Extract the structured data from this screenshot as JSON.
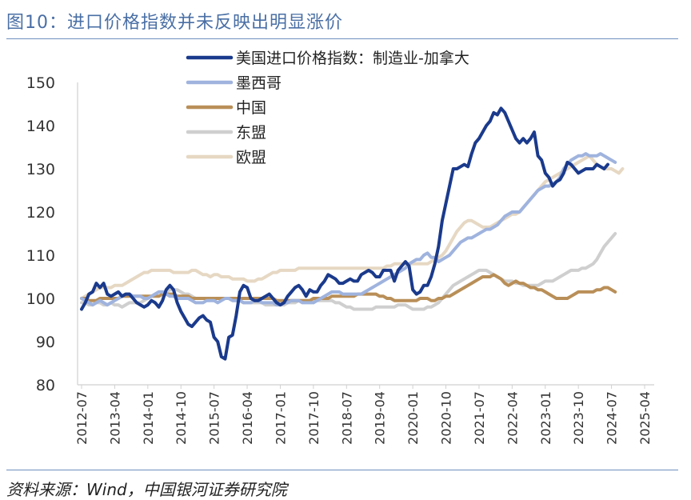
{
  "figure_title": "图10：进口价格指数并未反映出明显涨价",
  "source": "资料来源：Wind，中国银河证券研究院",
  "chart_data": {
    "type": "line",
    "title": "",
    "xlabel": "",
    "ylabel": "",
    "ylim": [
      80,
      150
    ],
    "yticks": [
      80,
      90,
      100,
      110,
      120,
      130,
      140,
      150
    ],
    "grid": false,
    "legend_position": "top",
    "x_ticks": [
      "2012-07",
      "2013-04",
      "2014-01",
      "2014-10",
      "2015-07",
      "2016-04",
      "2017-01",
      "2017-10",
      "2018-07",
      "2019-04",
      "2020-01",
      "2020-10",
      "2021-07",
      "2022-04",
      "2023-01",
      "2023-10",
      "2024-07",
      "2025-04"
    ],
    "x_start": "2012-07",
    "frequency": "monthly",
    "series": [
      {
        "name": "美国进口价格指数：制造业-加拿大",
        "color": "#1a3a8c",
        "width": 4,
        "values": [
          97.5,
          99.0,
          101.0,
          101.5,
          103.5,
          102.5,
          103.5,
          101.0,
          100.5,
          101.0,
          101.5,
          100.5,
          101.0,
          101.0,
          100.0,
          99.0,
          98.5,
          98.0,
          98.5,
          99.5,
          99.0,
          98.0,
          99.5,
          102.0,
          103.0,
          102.0,
          99.0,
          97.0,
          95.5,
          94.0,
          93.5,
          94.5,
          95.5,
          96.0,
          95.0,
          94.5,
          91.0,
          90.0,
          86.5,
          86.0,
          91.0,
          91.5,
          96.0,
          101.5,
          103.0,
          102.5,
          100.0,
          99.5,
          99.5,
          100.0,
          100.5,
          101.0,
          100.0,
          99.0,
          98.5,
          99.0,
          100.5,
          101.5,
          102.5,
          103.0,
          102.0,
          100.5,
          102.0,
          101.5,
          101.5,
          103.0,
          104.0,
          105.5,
          105.0,
          104.5,
          103.5,
          103.5,
          104.0,
          104.5,
          104.0,
          104.0,
          105.5,
          106.0,
          106.5,
          106.0,
          105.0,
          105.0,
          106.5,
          106.5,
          106.5,
          104.0,
          106.5,
          107.5,
          108.5,
          107.5,
          102.0,
          101.0,
          101.5,
          103.0,
          103.0,
          105.0,
          108.0,
          112.0,
          118.0,
          122.0,
          126.0,
          130.0,
          130.0,
          130.5,
          131.0,
          130.5,
          133.5,
          136.0,
          137.0,
          138.5,
          140.0,
          141.0,
          143.0,
          142.5,
          144.0,
          143.0,
          141.0,
          139.0,
          137.0,
          136.0,
          137.0,
          136.0,
          137.0,
          138.5,
          133.0,
          132.0,
          129.0,
          128.0,
          126.0,
          127.0,
          127.5,
          129.0,
          131.5,
          131.0,
          130.0,
          129.0,
          129.5,
          130.0,
          130.0,
          130.0,
          131.0,
          130.5,
          130.0,
          131.0
        ]
      },
      {
        "name": "墨西哥",
        "color": "#9fb3de",
        "width": 4,
        "values": [
          100.0,
          99.5,
          99.0,
          98.5,
          99.0,
          99.5,
          99.0,
          98.5,
          99.0,
          99.5,
          100.0,
          100.5,
          101.0,
          101.0,
          100.5,
          100.5,
          100.5,
          100.0,
          100.0,
          100.5,
          101.0,
          101.5,
          101.5,
          101.0,
          100.5,
          100.5,
          100.0,
          100.0,
          100.0,
          100.0,
          99.5,
          99.0,
          99.0,
          99.0,
          99.5,
          99.5,
          99.5,
          99.0,
          99.5,
          100.0,
          100.0,
          99.5,
          99.5,
          99.5,
          99.0,
          99.0,
          99.0,
          99.5,
          99.5,
          99.0,
          99.0,
          99.0,
          99.0,
          98.5,
          98.5,
          99.0,
          99.0,
          99.5,
          99.5,
          99.5,
          99.0,
          99.0,
          99.0,
          99.0,
          99.5,
          100.0,
          100.5,
          101.0,
          101.5,
          101.5,
          101.5,
          101.0,
          101.0,
          101.0,
          101.0,
          101.0,
          101.0,
          101.5,
          102.0,
          102.5,
          103.0,
          103.5,
          104.0,
          104.5,
          105.0,
          105.5,
          106.0,
          106.5,
          107.0,
          108.0,
          108.5,
          109.0,
          109.0,
          110.0,
          110.5,
          109.5,
          109.5,
          108.5,
          109.0,
          109.5,
          110.0,
          111.0,
          112.0,
          113.0,
          113.5,
          114.0,
          114.0,
          114.5,
          115.0,
          115.5,
          116.0,
          116.0,
          116.5,
          117.0,
          118.0,
          119.0,
          119.5,
          120.0,
          120.0,
          120.0,
          121.0,
          122.0,
          123.0,
          124.0,
          125.0,
          125.5,
          126.0,
          126.0,
          126.5,
          127.0,
          128.0,
          130.0,
          131.0,
          132.0,
          132.5,
          133.0,
          133.0,
          133.5,
          133.0,
          133.0,
          133.0,
          133.5,
          133.0,
          132.5,
          132.0,
          131.5
        ]
      },
      {
        "name": "中国",
        "color": "#b98f58",
        "width": 4,
        "values": [
          100.0,
          100.0,
          99.5,
          99.5,
          99.5,
          100.0,
          100.0,
          100.0,
          100.0,
          100.0,
          100.0,
          100.5,
          100.5,
          100.5,
          100.5,
          100.5,
          100.5,
          100.5,
          100.5,
          100.5,
          100.5,
          100.5,
          101.0,
          101.0,
          101.0,
          101.0,
          100.5,
          100.5,
          100.5,
          100.5,
          100.0,
          100.0,
          100.0,
          100.0,
          100.0,
          100.0,
          100.0,
          100.0,
          100.0,
          100.0,
          100.0,
          100.0,
          100.0,
          100.0,
          100.0,
          100.0,
          100.0,
          100.0,
          100.0,
          100.0,
          100.0,
          100.0,
          100.0,
          99.5,
          99.5,
          99.5,
          99.5,
          99.5,
          99.5,
          99.5,
          99.5,
          99.5,
          99.5,
          100.0,
          100.0,
          100.0,
          100.0,
          100.0,
          100.5,
          100.5,
          100.5,
          100.5,
          100.5,
          100.5,
          100.5,
          101.0,
          101.0,
          101.0,
          101.0,
          101.0,
          101.0,
          100.5,
          100.5,
          100.0,
          100.0,
          99.5,
          99.5,
          99.5,
          99.5,
          99.5,
          99.5,
          99.5,
          100.0,
          100.0,
          100.0,
          99.5,
          99.5,
          100.0,
          100.0,
          100.5,
          100.5,
          101.0,
          101.5,
          102.0,
          102.5,
          103.0,
          103.5,
          104.0,
          104.5,
          105.0,
          105.0,
          105.0,
          105.5,
          105.0,
          104.5,
          103.5,
          103.0,
          103.5,
          104.0,
          103.5,
          103.5,
          103.0,
          102.5,
          102.5,
          102.0,
          102.0,
          101.5,
          101.0,
          100.5,
          100.0,
          100.0,
          100.0,
          100.0,
          100.5,
          101.0,
          101.5,
          101.5,
          101.5,
          101.5,
          101.5,
          102.0,
          102.0,
          102.5,
          102.5,
          102.0,
          101.5
        ]
      },
      {
        "name": "东盟",
        "color": "#cfcfcf",
        "width": 4,
        "values": [
          99.0,
          99.0,
          98.5,
          98.5,
          99.0,
          99.0,
          98.5,
          98.5,
          99.0,
          98.5,
          98.5,
          98.0,
          98.5,
          99.0,
          99.0,
          99.0,
          99.0,
          99.5,
          100.0,
          100.5,
          101.0,
          101.5,
          101.5,
          101.5,
          102.0,
          102.0,
          102.0,
          101.5,
          101.0,
          101.0,
          100.5,
          100.0,
          100.0,
          100.0,
          100.0,
          100.0,
          100.0,
          100.0,
          100.0,
          100.0,
          100.0,
          99.5,
          99.5,
          99.5,
          99.0,
          99.0,
          99.0,
          99.0,
          99.0,
          99.0,
          98.5,
          98.5,
          98.5,
          98.5,
          98.5,
          98.5,
          99.0,
          99.0,
          99.0,
          99.5,
          99.5,
          99.5,
          99.5,
          99.5,
          99.5,
          99.5,
          99.5,
          99.5,
          99.5,
          99.0,
          99.0,
          98.5,
          98.0,
          98.0,
          97.5,
          97.5,
          97.5,
          97.5,
          97.5,
          97.5,
          98.0,
          98.0,
          98.0,
          98.0,
          98.0,
          98.0,
          98.5,
          98.5,
          98.5,
          98.0,
          97.5,
          97.5,
          97.5,
          97.5,
          98.0,
          98.0,
          98.5,
          99.0,
          100.0,
          101.0,
          102.0,
          103.0,
          103.5,
          104.0,
          104.5,
          105.0,
          105.5,
          106.0,
          106.5,
          106.5,
          106.5,
          106.0,
          105.5,
          105.0,
          104.5,
          104.0,
          104.0,
          104.0,
          103.5,
          103.5,
          103.0,
          103.0,
          103.0,
          103.0,
          103.0,
          103.5,
          104.0,
          104.0,
          104.0,
          104.5,
          105.0,
          105.5,
          106.0,
          106.5,
          106.5,
          106.5,
          107.0,
          107.0,
          107.5,
          108.0,
          109.0,
          110.5,
          112.0,
          113.0,
          114.0,
          115.0
        ]
      },
      {
        "name": "欧盟",
        "color": "#e6d8c3",
        "width": 4,
        "values": [
          100.0,
          100.5,
          101.0,
          101.5,
          102.0,
          102.5,
          102.5,
          102.5,
          102.5,
          103.0,
          103.0,
          103.0,
          103.5,
          104.0,
          104.5,
          105.0,
          105.5,
          106.0,
          106.0,
          106.5,
          106.5,
          106.5,
          106.5,
          106.5,
          106.5,
          106.0,
          106.0,
          106.0,
          106.0,
          106.0,
          106.5,
          106.5,
          106.0,
          105.5,
          105.5,
          105.0,
          105.5,
          105.5,
          105.0,
          105.0,
          105.0,
          104.5,
          104.5,
          104.5,
          104.5,
          104.0,
          104.0,
          104.0,
          104.5,
          104.5,
          105.0,
          105.5,
          106.0,
          106.0,
          106.5,
          106.5,
          106.5,
          106.5,
          106.5,
          107.0,
          107.0,
          107.0,
          107.0,
          107.0,
          107.0,
          107.0,
          107.0,
          107.0,
          107.0,
          107.0,
          107.0,
          107.0,
          107.0,
          107.0,
          107.0,
          107.0,
          107.0,
          107.0,
          107.0,
          107.0,
          107.0,
          107.0,
          107.0,
          107.5,
          107.5,
          108.0,
          108.0,
          108.0,
          108.0,
          108.0,
          108.0,
          108.0,
          108.0,
          108.0,
          108.0,
          108.5,
          109.0,
          109.5,
          110.0,
          111.0,
          112.5,
          114.0,
          115.5,
          116.5,
          117.5,
          118.0,
          118.0,
          117.5,
          117.0,
          116.5,
          116.5,
          116.5,
          117.0,
          117.5,
          118.0,
          118.5,
          119.0,
          119.5,
          119.5,
          120.0,
          121.0,
          122.0,
          123.0,
          124.0,
          125.0,
          126.0,
          127.0,
          127.5,
          128.0,
          128.5,
          129.0,
          129.5,
          130.0,
          130.5,
          131.0,
          131.5,
          132.0,
          132.5,
          133.0,
          132.0,
          131.0,
          130.5,
          130.0,
          130.0,
          130.0,
          129.5,
          129.0,
          130.0
        ]
      }
    ]
  }
}
